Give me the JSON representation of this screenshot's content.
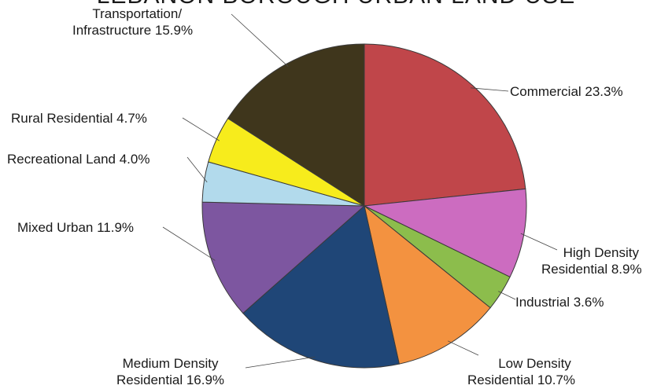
{
  "chart_data": {
    "type": "pie",
    "title": "LEBANON BOROUGH URBAN LAND USE",
    "unit": "%",
    "slices": [
      {
        "name": "Commercial",
        "value": 23.3,
        "color": "#c0464a",
        "label": "Commercial 23.3%"
      },
      {
        "name": "High Density Residential",
        "value": 8.9,
        "color": "#cc6cc0",
        "label_line1": "High Density",
        "label_line2": "Residential 8.9%"
      },
      {
        "name": "Industrial",
        "value": 3.6,
        "color": "#8cbd4c",
        "label": "Industrial 3.6%"
      },
      {
        "name": "Low Density Residential",
        "value": 10.7,
        "color": "#f39240",
        "label_line1": "Low Density",
        "label_line2": "Residential 10.7%"
      },
      {
        "name": "Medium Density Residential",
        "value": 16.9,
        "color": "#1f4677",
        "label_line1": "Medium Density",
        "label_line2": "Residential 16.9%"
      },
      {
        "name": "Mixed Urban",
        "value": 11.9,
        "color": "#7d56a0",
        "label": "Mixed Urban 11.9%"
      },
      {
        "name": "Recreational Land",
        "value": 4.0,
        "color": "#b2daec",
        "label": "Recreational Land 4.0%"
      },
      {
        "name": "Rural Residential",
        "value": 4.7,
        "color": "#f7ec1c",
        "label": "Rural Residential 4.7%"
      },
      {
        "name": "Transportation/Infrastructure",
        "value": 15.9,
        "color": "#3f361c",
        "label_line1": "Transportation/",
        "label_line2": "Infrastructure 15.9%"
      }
    ]
  }
}
